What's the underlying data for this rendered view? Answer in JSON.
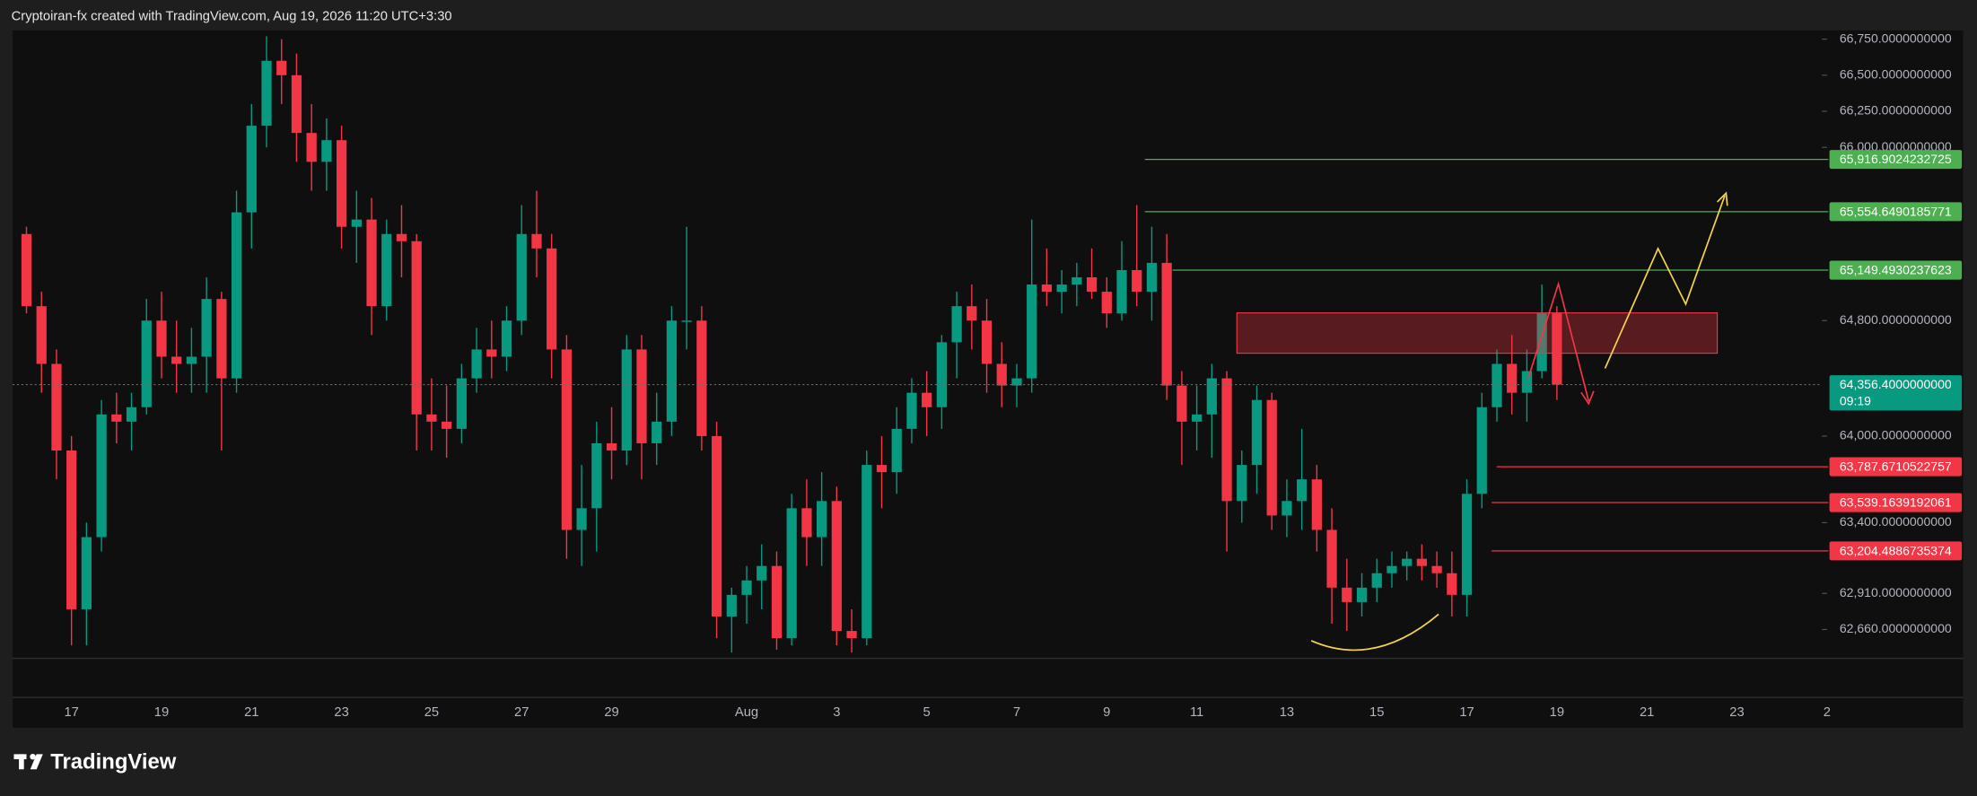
{
  "header": {
    "text": "Cryptoiran-fx created with TradingView.com, Aug 19, 2026 11:20 UTC+3:30"
  },
  "chart_data": {
    "type": "candlestick",
    "up_color": "#089981",
    "down_color": "#f23645",
    "grid": false,
    "ylim": [
      62460,
      66810
    ],
    "yticks": [
      {
        "value": 66750,
        "label": "66,750.0000000000"
      },
      {
        "value": 66500,
        "label": "66,500.0000000000"
      },
      {
        "value": 66250,
        "label": "66,250.0000000000"
      },
      {
        "value": 66000,
        "label": "66,000.0000000000"
      },
      {
        "value": 64800,
        "label": "64,800.0000000000"
      },
      {
        "value": 64000,
        "label": "64,000.0000000000"
      },
      {
        "value": 63400,
        "label": "63,400.0000000000"
      },
      {
        "value": 62910,
        "label": "62,910.0000000000"
      },
      {
        "value": 62660,
        "label": "62,660.0000000000"
      }
    ],
    "categories": [
      null,
      null,
      null,
      "17",
      null,
      null,
      null,
      null,
      null,
      "19",
      null,
      null,
      null,
      null,
      null,
      "21",
      null,
      null,
      null,
      null,
      null,
      "23",
      null,
      null,
      null,
      null,
      null,
      "25",
      null,
      null,
      null,
      null,
      null,
      "27",
      null,
      null,
      null,
      null,
      null,
      "29",
      null,
      null,
      null,
      null,
      null,
      null,
      null,
      null,
      "Aug",
      null,
      null,
      null,
      null,
      null,
      "3",
      null,
      null,
      null,
      null,
      null,
      "5",
      null,
      null,
      null,
      null,
      null,
      "7",
      null,
      null,
      null,
      null,
      null,
      "9",
      null,
      null,
      null,
      null,
      null,
      "11",
      null,
      null,
      null,
      null,
      null,
      "13",
      null,
      null,
      null,
      null,
      null,
      "15",
      null,
      null,
      null,
      null,
      null,
      "17",
      null,
      null,
      null,
      null,
      null,
      "19",
      null,
      null,
      null,
      null,
      null,
      "21",
      null,
      null,
      null,
      null,
      null,
      "23",
      null,
      null,
      null,
      null,
      null,
      "2"
    ],
    "ohlc": [
      [
        65400,
        65450,
        64850,
        64900
      ],
      [
        64900,
        65000,
        64300,
        64500
      ],
      [
        64500,
        64600,
        63700,
        63900
      ],
      [
        63900,
        64000,
        62550,
        62800
      ],
      [
        62800,
        63400,
        62550,
        63300
      ],
      [
        63300,
        64250,
        63200,
        64150
      ],
      [
        64150,
        64300,
        63950,
        64100
      ],
      [
        64100,
        64300,
        63900,
        64200
      ],
      [
        64200,
        64950,
        64150,
        64800
      ],
      [
        64800,
        65000,
        64400,
        64550
      ],
      [
        64550,
        64800,
        64300,
        64500
      ],
      [
        64500,
        64750,
        64300,
        64550
      ],
      [
        64550,
        65100,
        64300,
        64950
      ],
      [
        64950,
        65000,
        63900,
        64400
      ],
      [
        64400,
        65700,
        64300,
        65550
      ],
      [
        65550,
        66300,
        65300,
        66150
      ],
      [
        66150,
        66770,
        66000,
        66600
      ],
      [
        66600,
        66750,
        66300,
        66500
      ],
      [
        66500,
        66650,
        65900,
        66100
      ],
      [
        66100,
        66300,
        65700,
        65900
      ],
      [
        65900,
        66200,
        65700,
        66050
      ],
      [
        66050,
        66150,
        65300,
        65450
      ],
      [
        65450,
        65700,
        65200,
        65500
      ],
      [
        65500,
        65650,
        64700,
        64900
      ],
      [
        64900,
        65500,
        64800,
        65400
      ],
      [
        65400,
        65600,
        65100,
        65350
      ],
      [
        65350,
        65400,
        63900,
        64150
      ],
      [
        64150,
        64400,
        63900,
        64100
      ],
      [
        64100,
        64350,
        63850,
        64050
      ],
      [
        64050,
        64500,
        63950,
        64400
      ],
      [
        64400,
        64750,
        64300,
        64600
      ],
      [
        64600,
        64800,
        64400,
        64550
      ],
      [
        64550,
        64900,
        64450,
        64800
      ],
      [
        64800,
        65600,
        64700,
        65400
      ],
      [
        65400,
        65700,
        65100,
        65300
      ],
      [
        65300,
        65400,
        64400,
        64600
      ],
      [
        64600,
        64700,
        63150,
        63350
      ],
      [
        63350,
        63800,
        63100,
        63500
      ],
      [
        63500,
        64100,
        63200,
        63950
      ],
      [
        63950,
        64200,
        63700,
        63900
      ],
      [
        63900,
        64700,
        63800,
        64600
      ],
      [
        64600,
        64700,
        63700,
        63950
      ],
      [
        63950,
        64300,
        63800,
        64100
      ],
      [
        64100,
        64900,
        64000,
        64800
      ],
      [
        64800,
        65450,
        64600,
        64800
      ],
      [
        64800,
        64900,
        63900,
        64000
      ],
      [
        64000,
        64100,
        62600,
        62750
      ],
      [
        62750,
        62950,
        62500,
        62900
      ],
      [
        62900,
        63100,
        62700,
        63000
      ],
      [
        63000,
        63250,
        62800,
        63100
      ],
      [
        63100,
        63200,
        62520,
        62600
      ],
      [
        62600,
        63600,
        62550,
        63500
      ],
      [
        63500,
        63700,
        63100,
        63300
      ],
      [
        63300,
        63750,
        63100,
        63550
      ],
      [
        63550,
        63650,
        62550,
        62650
      ],
      [
        62650,
        62800,
        62500,
        62600
      ],
      [
        62600,
        63900,
        62550,
        63800
      ],
      [
        63800,
        64000,
        63500,
        63750
      ],
      [
        63750,
        64200,
        63600,
        64050
      ],
      [
        64050,
        64400,
        63950,
        64300
      ],
      [
        64300,
        64450,
        64000,
        64200
      ],
      [
        64200,
        64700,
        64050,
        64650
      ],
      [
        64650,
        65000,
        64400,
        64900
      ],
      [
        64900,
        65050,
        64600,
        64800
      ],
      [
        64800,
        64950,
        64300,
        64500
      ],
      [
        64500,
        64650,
        64200,
        64350
      ],
      [
        64350,
        64500,
        64200,
        64400
      ],
      [
        64400,
        65500,
        64300,
        65050
      ],
      [
        65050,
        65300,
        64900,
        65000
      ],
      [
        65000,
        65150,
        64850,
        65050
      ],
      [
        65050,
        65200,
        64900,
        65100
      ],
      [
        65100,
        65300,
        64950,
        65000
      ],
      [
        65000,
        65100,
        64750,
        64850
      ],
      [
        64850,
        65350,
        64800,
        65150
      ],
      [
        65150,
        65600,
        64900,
        65000
      ],
      [
        65000,
        65450,
        64800,
        65200
      ],
      [
        65200,
        65400,
        64250,
        64350
      ],
      [
        64350,
        64450,
        63800,
        64100
      ],
      [
        64100,
        64350,
        63900,
        64150
      ],
      [
        64150,
        64500,
        63850,
        64400
      ],
      [
        64400,
        64450,
        63200,
        63550
      ],
      [
        63550,
        63900,
        63400,
        63800
      ],
      [
        63800,
        64350,
        63600,
        64250
      ],
      [
        64250,
        64300,
        63350,
        63450
      ],
      [
        63450,
        63700,
        63300,
        63550
      ],
      [
        63550,
        64050,
        63350,
        63700
      ],
      [
        63700,
        63800,
        63200,
        63350
      ],
      [
        63350,
        63500,
        62700,
        62950
      ],
      [
        62950,
        63150,
        62650,
        62850
      ],
      [
        62850,
        63050,
        62750,
        62950
      ],
      [
        62950,
        63150,
        62850,
        63050
      ],
      [
        63050,
        63200,
        62950,
        63100
      ],
      [
        63100,
        63200,
        63000,
        63150
      ],
      [
        63150,
        63250,
        63000,
        63100
      ],
      [
        63100,
        63200,
        62950,
        63050
      ],
      [
        63050,
        63200,
        62750,
        62900
      ],
      [
        62900,
        63700,
        62750,
        63600
      ],
      [
        63600,
        64300,
        63500,
        64200
      ],
      [
        64200,
        64600,
        64100,
        64500
      ],
      [
        64500,
        64700,
        64150,
        64300
      ],
      [
        64300,
        64600,
        64100,
        64450
      ],
      [
        64450,
        65050,
        64400,
        64850
      ],
      [
        64850,
        64900,
        64250,
        64356.4
      ],
      null,
      null,
      null,
      null,
      null,
      null,
      null,
      null,
      null,
      null,
      null,
      null,
      null,
      null,
      null,
      null,
      null,
      null
    ],
    "levels": [
      {
        "value": 65916.9024232725,
        "label": "65,916.9024232725",
        "color": "#4caf50"
      },
      {
        "value": 65554.6490185771,
        "label": "65,554.6490185771",
        "color": "#4caf50"
      },
      {
        "value": 65149.4930237623,
        "label": "65,149.4930237623",
        "color": "#4caf50"
      },
      {
        "value": 63787.6710522757,
        "label": "63,787.6710522757",
        "color": "#f23645"
      },
      {
        "value": 63539.1639192061,
        "label": "63,539.1639192061",
        "color": "#f23645"
      },
      {
        "value": 63204.4886735374,
        "label": "63,204.4886735374",
        "color": "#f23645"
      }
    ],
    "current_price": {
      "value": 64356.4,
      "label": "64,356.4000000000",
      "countdown": "09:19",
      "color": "#089981"
    }
  },
  "footer": {
    "brand": "TradingView"
  }
}
